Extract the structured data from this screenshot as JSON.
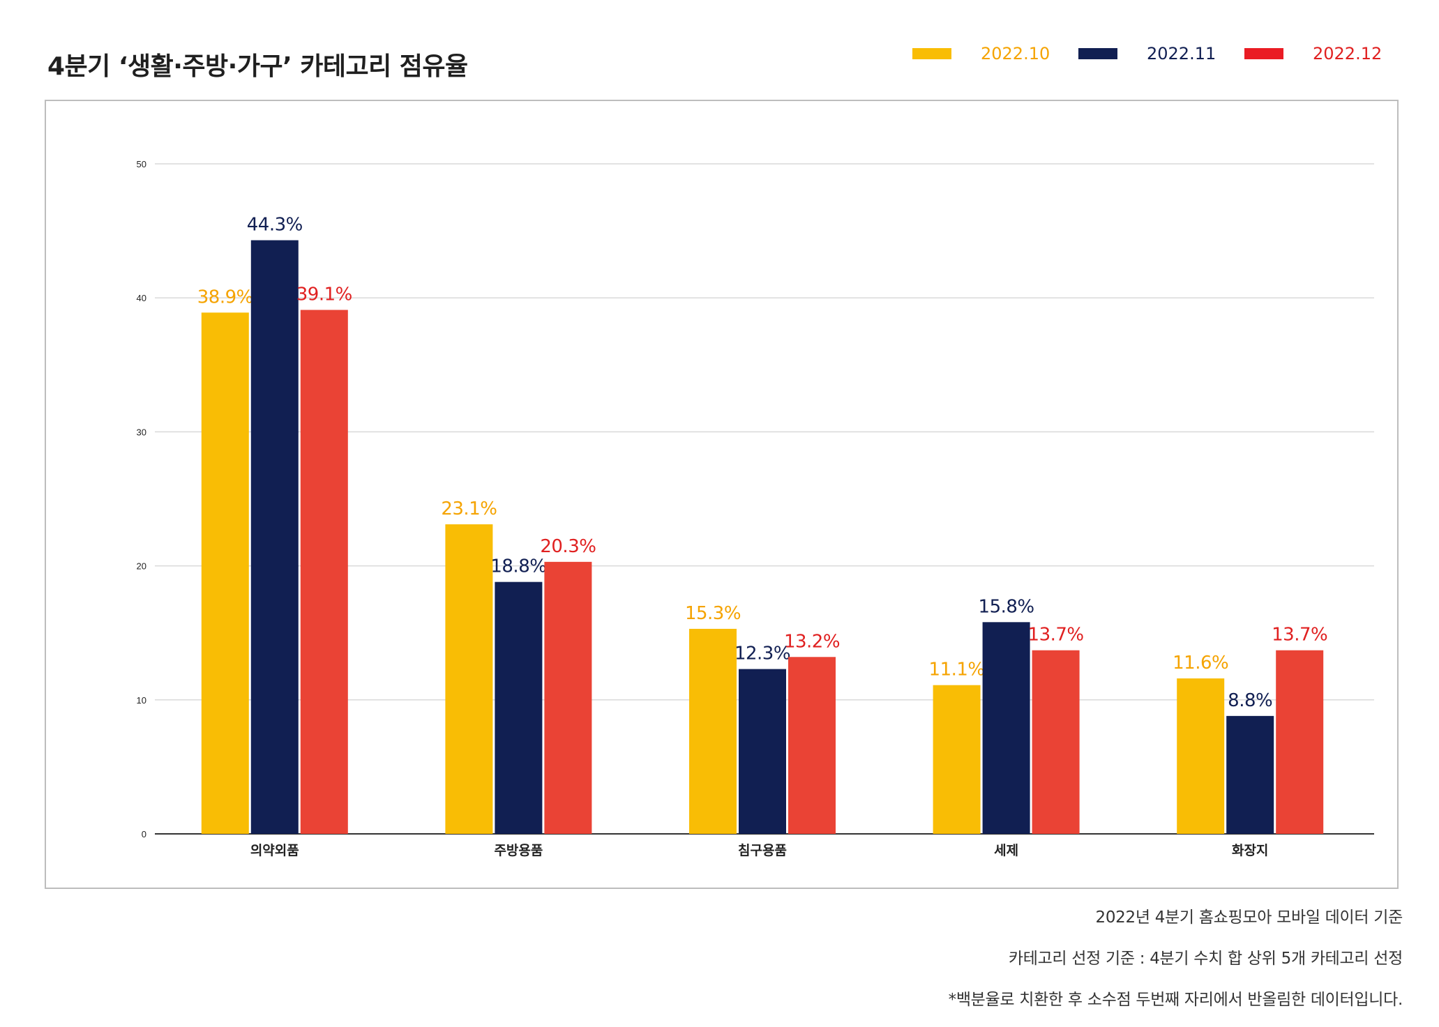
{
  "title": "4분기 ‘생활·주방·가구’ 카테고리 점유율",
  "legend": [
    {
      "label": "2022.10",
      "color": "#f9bd05"
    },
    {
      "label": "2022.11",
      "color": "#111f52"
    },
    {
      "label": "2022.12",
      "color": "#ea4335"
    }
  ],
  "label_colors": [
    "#f5a300",
    "#111f52",
    "#e02020"
  ],
  "notes": [
    "2022년 4분기 홈쇼핑모아 모바일 데이터 기준",
    "카테고리 선정 기준 : 4분기 수치 합 상위 5개 카테고리 선정",
    "*백분율로 치환한 후 소수점 두번째 자리에서 반올림한 데이터입니다."
  ],
  "chart_data": {
    "type": "bar",
    "categories": [
      "의약외품",
      "주방용품",
      "침구용품",
      "세제",
      "화장지"
    ],
    "series": [
      {
        "name": "2022.10",
        "values": [
          38.9,
          23.1,
          15.3,
          11.1,
          11.6
        ],
        "labels": [
          "38.9%",
          "23.1%",
          "15.3%",
          "11.1%",
          "11.6%"
        ]
      },
      {
        "name": "2022.11",
        "values": [
          44.3,
          18.8,
          12.3,
          15.8,
          8.8
        ],
        "labels": [
          "44.3%",
          "18.8%",
          "12.3%",
          "15.8%",
          "8.8%"
        ]
      },
      {
        "name": "2022.12",
        "values": [
          39.1,
          20.3,
          13.2,
          13.7,
          13.7
        ],
        "labels": [
          "39.1%",
          "20.3%",
          "13.2%",
          "13.7%",
          "13.7%"
        ]
      }
    ],
    "yticks": [
      0,
      10,
      20,
      30,
      40,
      50
    ],
    "ylim": [
      0,
      50
    ],
    "grid": true,
    "legend_position": "top-right"
  }
}
